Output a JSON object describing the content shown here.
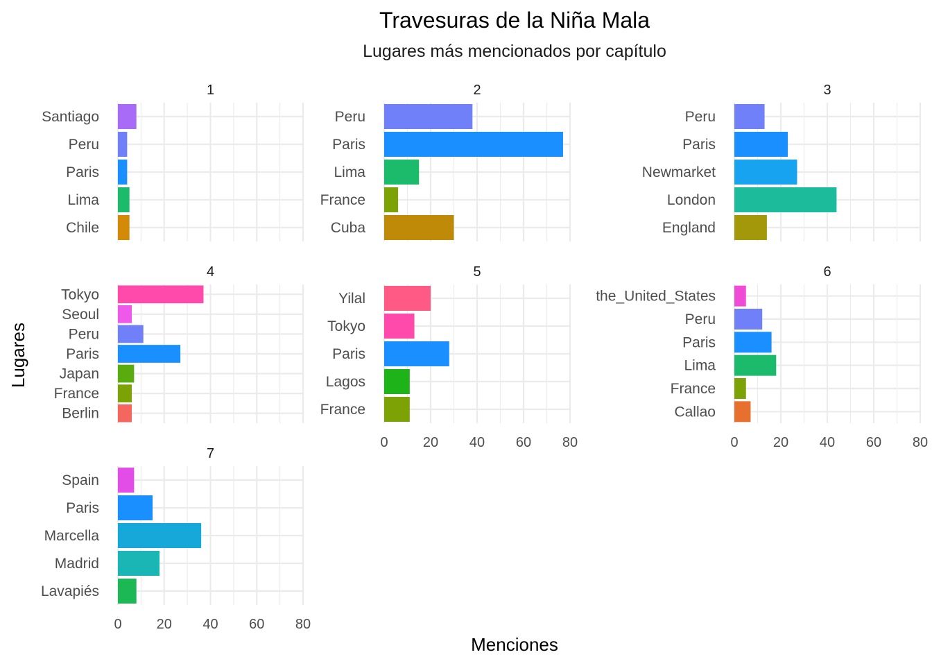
{
  "chart_data": {
    "type": "bar",
    "orientation": "horizontal",
    "title": "Travesuras de la Niña Mala",
    "subtitle": "Lugares más mencionados por capítulo",
    "xlabel": "Menciones",
    "ylabel": "Lugares",
    "xlim": [
      0,
      80
    ],
    "x_ticks": [
      "0",
      "20",
      "40",
      "60",
      "80"
    ],
    "grid": true,
    "facets": [
      {
        "label": "1",
        "categories": [
          "Santiago",
          "Peru",
          "Paris",
          "Lima",
          "Chile"
        ],
        "values": [
          8,
          4,
          4,
          5,
          5
        ],
        "colors": [
          "#A86BF7",
          "#6F80F9",
          "#1A8FFF",
          "#1CBB6C",
          "#D38A07"
        ]
      },
      {
        "label": "2",
        "categories": [
          "Peru",
          "Paris",
          "Lima",
          "France",
          "Cuba"
        ],
        "values": [
          38,
          77,
          15,
          6,
          30
        ],
        "colors": [
          "#6F80F9",
          "#1A8FFF",
          "#1CBB6C",
          "#7CA206",
          "#BE8A07"
        ]
      },
      {
        "label": "3",
        "categories": [
          "Peru",
          "Paris",
          "Newmarket",
          "London",
          "England"
        ],
        "values": [
          13,
          23,
          27,
          44,
          14
        ],
        "colors": [
          "#6F80F9",
          "#1A8FFF",
          "#18A3F0",
          "#1CBB9C",
          "#A3980A"
        ]
      },
      {
        "label": "4",
        "categories": [
          "Tokyo",
          "Seoul",
          "Peru",
          "Paris",
          "Japan",
          "France",
          "Berlin"
        ],
        "values": [
          37,
          6,
          11,
          27,
          7,
          6,
          6
        ],
        "colors": [
          "#FF4AAB",
          "#EF59E9",
          "#6F80F9",
          "#1A8FFF",
          "#58AC0E",
          "#7CA206",
          "#F4665E"
        ]
      },
      {
        "label": "5",
        "categories": [
          "Yilal",
          "Tokyo",
          "Paris",
          "Lagos",
          "France"
        ],
        "values": [
          20,
          13,
          28,
          11,
          11
        ],
        "colors": [
          "#FF5A86",
          "#FF4AAB",
          "#1A8FFF",
          "#1DB319",
          "#7CA206"
        ]
      },
      {
        "label": "6",
        "categories": [
          "the_United_States",
          "Peru",
          "Paris",
          "Lima",
          "France",
          "Callao"
        ],
        "values": [
          5,
          12,
          16,
          18,
          5,
          7
        ],
        "colors": [
          "#F04BD6",
          "#6F80F9",
          "#1A8FFF",
          "#1CBB6C",
          "#7CA206",
          "#E8702F"
        ]
      },
      {
        "label": "7",
        "categories": [
          "Spain",
          "Paris",
          "Marcella",
          "Madrid",
          "Lavapiés"
        ],
        "values": [
          7,
          15,
          36,
          18,
          8
        ],
        "colors": [
          "#E14DE6",
          "#1A8FFF",
          "#16A8D8",
          "#1AB5B5",
          "#1CB855"
        ]
      }
    ]
  }
}
